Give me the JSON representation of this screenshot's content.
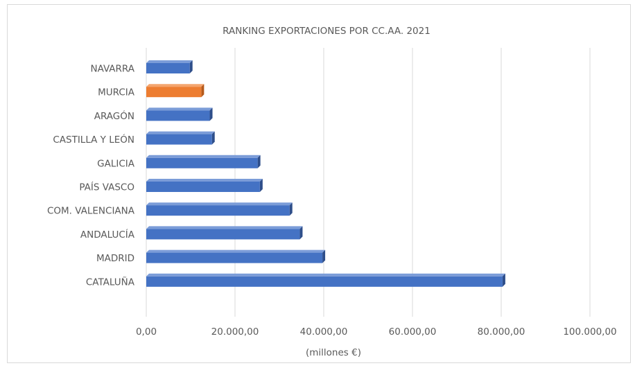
{
  "chart_data": {
    "type": "bar",
    "orientation": "horizontal",
    "title": "RANKING EXPORTACIONES POR CC.AA. 2021",
    "xlabel": "(millones €)",
    "ylabel": "",
    "xlim": [
      0,
      100000
    ],
    "x_ticks": [
      0,
      20000,
      40000,
      60000,
      80000,
      100000
    ],
    "x_tick_labels": [
      "0,00",
      "20.000,00",
      "40.000,00",
      "60.000,00",
      "80.000,00",
      "100.000,00"
    ],
    "grid": true,
    "categories": [
      "NAVARRA",
      "MURCIA",
      "ARAGÓN",
      "CASTILLA Y LEÓN",
      "GALICIA",
      "PAÍS VASCO",
      "COM. VALENCIANA",
      "ANDALUCÍA",
      "MADRID",
      "CATALUÑA"
    ],
    "values": [
      9800,
      12400,
      14300,
      14800,
      25100,
      25600,
      32300,
      34600,
      39700,
      80300
    ],
    "colors": {
      "bar": "#4472c4",
      "bar_side": "#2e4e8a",
      "bar_top": "#7b9cd8",
      "highlight": "#ed7d31",
      "highlight_side": "#b55a1c",
      "highlight_top": "#f4a56e",
      "highlight_category": "MURCIA",
      "grid": "#d9d9d9",
      "text": "#595959"
    }
  }
}
